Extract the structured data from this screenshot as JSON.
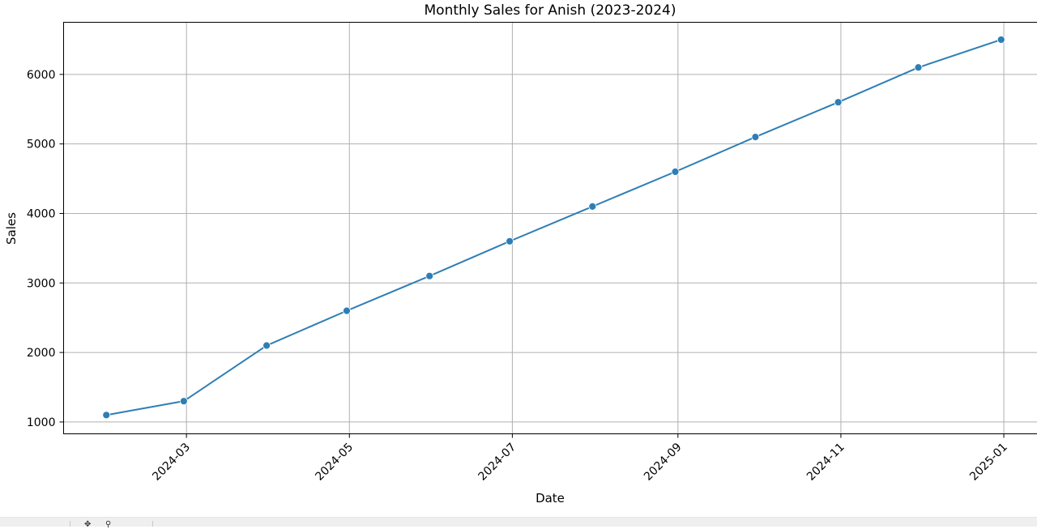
{
  "chart_data": {
    "type": "line",
    "title": "Monthly Sales for Anish (2023-2024)",
    "xlabel": "Date",
    "ylabel": "Sales",
    "x": [
      "2024-01-31",
      "2024-02-29",
      "2024-03-31",
      "2024-04-30",
      "2024-05-31",
      "2024-06-30",
      "2024-07-31",
      "2024-08-31",
      "2024-09-30",
      "2024-10-31",
      "2024-11-30",
      "2024-12-31"
    ],
    "series": [
      {
        "values": [
          1100,
          1300,
          2100,
          2600,
          3100,
          3600,
          4100,
          4600,
          5100,
          5600,
          6100,
          6500
        ],
        "color": "#2e7eb5"
      }
    ],
    "xlim": [
      "2024-01-15",
      "2025-01-16"
    ],
    "ylim": [
      830,
      6750
    ],
    "x_ticks": [
      "2024-03",
      "2024-05",
      "2024-07",
      "2024-09",
      "2024-11",
      "2025-01"
    ],
    "y_ticks": [
      1000,
      2000,
      3000,
      4000,
      5000,
      6000
    ],
    "grid": true,
    "marker": "circle",
    "line_color": "#2e7eb5"
  }
}
